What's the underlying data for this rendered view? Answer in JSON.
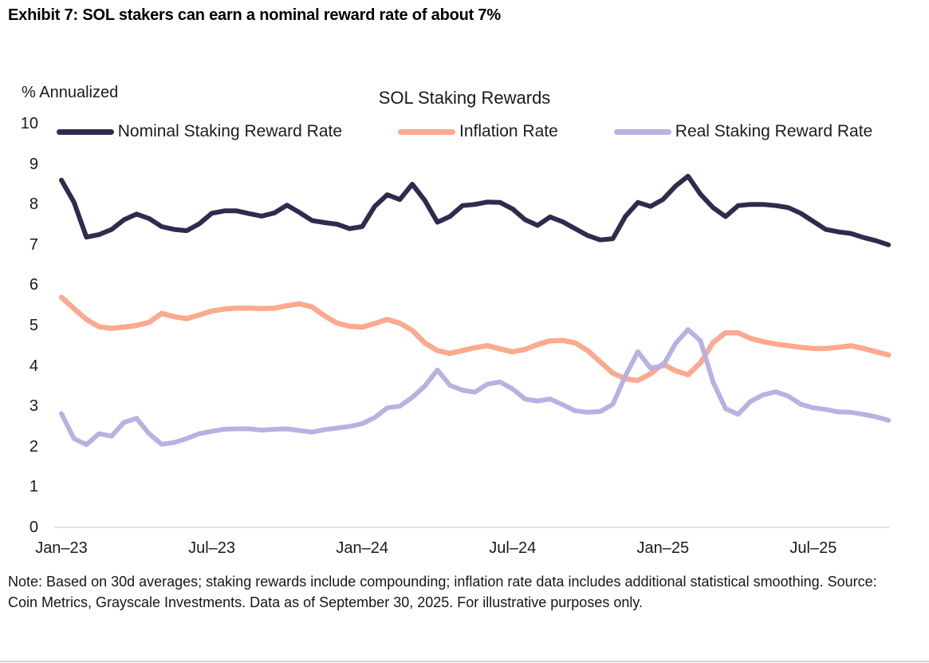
{
  "exhibit_title": "Exhibit 7: SOL stakers can earn a nominal reward rate of about 7%",
  "note": "Note: Based on 30d averages; staking rewards include compounding; inflation rate data includes additional statistical smoothing. Source: Coin Metrics, Grayscale Investments. Data as of September 30, 2025. For illustrative purposes only.",
  "chart_data": {
    "type": "line",
    "title": "SOL Staking Rewards",
    "y_axis_label": "% Annualized",
    "xlabel": "",
    "ylabel": "% Annualized",
    "ylim": [
      0,
      10
    ],
    "y_ticks": [
      10,
      9,
      8,
      7,
      6,
      5,
      4,
      3,
      2,
      1,
      0
    ],
    "x_tick_labels": [
      "Jan–23",
      "Jul–23",
      "Jan–24",
      "Jul–24",
      "Jan–25",
      "Jul–25"
    ],
    "x_tick_months": [
      0,
      6,
      12,
      18,
      24,
      30
    ],
    "x_start_month": 0,
    "x_step_months": 0.5,
    "x_end_month": 33,
    "grid": false,
    "legend_position": "top",
    "axis_line_color": "#d9d9d9",
    "series": [
      {
        "name": "Nominal Staking Reward Rate",
        "color": "#322a4e",
        "stroke_width": 6,
        "values": [
          8.6,
          8.06,
          7.19,
          7.25,
          7.38,
          7.62,
          7.76,
          7.65,
          7.45,
          7.38,
          7.35,
          7.52,
          7.78,
          7.84,
          7.84,
          7.77,
          7.71,
          7.79,
          7.98,
          7.8,
          7.6,
          7.55,
          7.51,
          7.4,
          7.45,
          7.95,
          8.24,
          8.12,
          8.5,
          8.1,
          7.56,
          7.7,
          7.97,
          8.0,
          8.06,
          8.05,
          7.89,
          7.62,
          7.48,
          7.69,
          7.57,
          7.4,
          7.23,
          7.12,
          7.15,
          7.7,
          8.05,
          7.95,
          8.12,
          8.45,
          8.7,
          8.25,
          7.92,
          7.7,
          7.97,
          8.0,
          8.0,
          7.97,
          7.92,
          7.78,
          7.58,
          7.38,
          7.32,
          7.28,
          7.18,
          7.1,
          7.0
        ]
      },
      {
        "name": "Inflation Rate",
        "color": "#fba98f",
        "stroke_width": 6.5,
        "values": [
          5.7,
          5.42,
          5.15,
          4.97,
          4.93,
          4.96,
          5.0,
          5.08,
          5.3,
          5.22,
          5.17,
          5.26,
          5.36,
          5.41,
          5.43,
          5.43,
          5.42,
          5.43,
          5.49,
          5.54,
          5.46,
          5.24,
          5.06,
          4.98,
          4.96,
          5.05,
          5.15,
          5.06,
          4.88,
          4.57,
          4.38,
          4.31,
          4.38,
          4.45,
          4.5,
          4.42,
          4.35,
          4.41,
          4.53,
          4.62,
          4.63,
          4.57,
          4.38,
          4.1,
          3.82,
          3.68,
          3.64,
          3.8,
          4.05,
          3.88,
          3.78,
          4.08,
          4.58,
          4.82,
          4.82,
          4.68,
          4.6,
          4.54,
          4.5,
          4.46,
          4.43,
          4.43,
          4.46,
          4.5,
          4.43,
          4.35,
          4.27
        ]
      },
      {
        "name": "Real Staking Reward Rate",
        "color": "#b8b1e2",
        "stroke_width": 6,
        "values": [
          2.82,
          2.2,
          2.05,
          2.32,
          2.26,
          2.6,
          2.7,
          2.32,
          2.06,
          2.1,
          2.2,
          2.32,
          2.38,
          2.43,
          2.44,
          2.44,
          2.41,
          2.43,
          2.44,
          2.4,
          2.36,
          2.42,
          2.46,
          2.5,
          2.57,
          2.72,
          2.96,
          3.0,
          3.22,
          3.5,
          3.9,
          3.52,
          3.4,
          3.35,
          3.55,
          3.6,
          3.43,
          3.18,
          3.13,
          3.18,
          3.04,
          2.89,
          2.85,
          2.87,
          3.05,
          3.75,
          4.35,
          3.95,
          4.0,
          4.55,
          4.9,
          4.62,
          3.6,
          2.94,
          2.8,
          3.12,
          3.28,
          3.36,
          3.25,
          3.05,
          2.96,
          2.92,
          2.86,
          2.85,
          2.8,
          2.74,
          2.65
        ]
      }
    ]
  }
}
